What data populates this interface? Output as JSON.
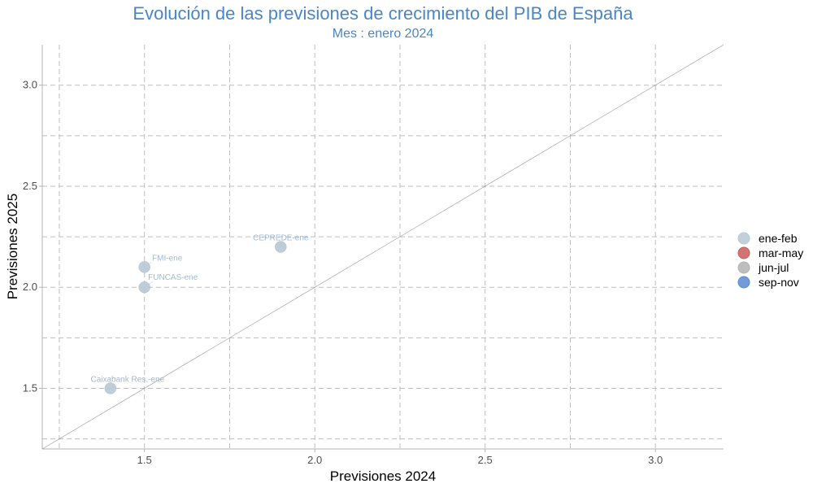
{
  "chart_data": {
    "type": "scatter",
    "title": "Evolución de las previsiones de crecimiento del PIB de España",
    "subtitle": "Mes : enero 2024",
    "xlabel": "Previsiones 2024",
    "ylabel": "Previsiones 2025",
    "xlim": [
      1.2,
      3.2
    ],
    "ylim": [
      1.2,
      3.2
    ],
    "xticks": [
      "1.5",
      "2.0",
      "2.5",
      "3.0"
    ],
    "yticks": [
      "1.5",
      "2.0",
      "2.5",
      "3.0"
    ],
    "xtick_values": [
      1.5,
      2.0,
      2.5,
      3.0
    ],
    "ytick_values": [
      1.5,
      2.0,
      2.5,
      3.0
    ],
    "grid": true,
    "reference_line": "y = x",
    "legend_position": "right",
    "legend": [
      {
        "label": "ene-feb",
        "color": "#b8c8d4"
      },
      {
        "label": "mar-may",
        "color": "#c85c5c"
      },
      {
        "label": "jun-jul",
        "color": "#b3b3b3"
      },
      {
        "label": "sep-nov",
        "color": "#5b8ad0"
      }
    ],
    "points": [
      {
        "label": "CEPREDE-ene",
        "x": 1.9,
        "y": 2.2,
        "group": "ene-feb",
        "label_color": "#9fb9d6"
      },
      {
        "label": "FMI-ene",
        "x": 1.5,
        "y": 2.1,
        "group": "ene-feb",
        "label_color": "#9fb9d6"
      },
      {
        "label": "FUNCAS-ene",
        "x": 1.5,
        "y": 2.0,
        "group": "ene-feb",
        "label_color": "#9fb9d6"
      },
      {
        "label": "Caixabank Res.-ene",
        "x": 1.4,
        "y": 1.5,
        "group": "ene-feb",
        "label_color": "#a9b6c4"
      }
    ]
  }
}
